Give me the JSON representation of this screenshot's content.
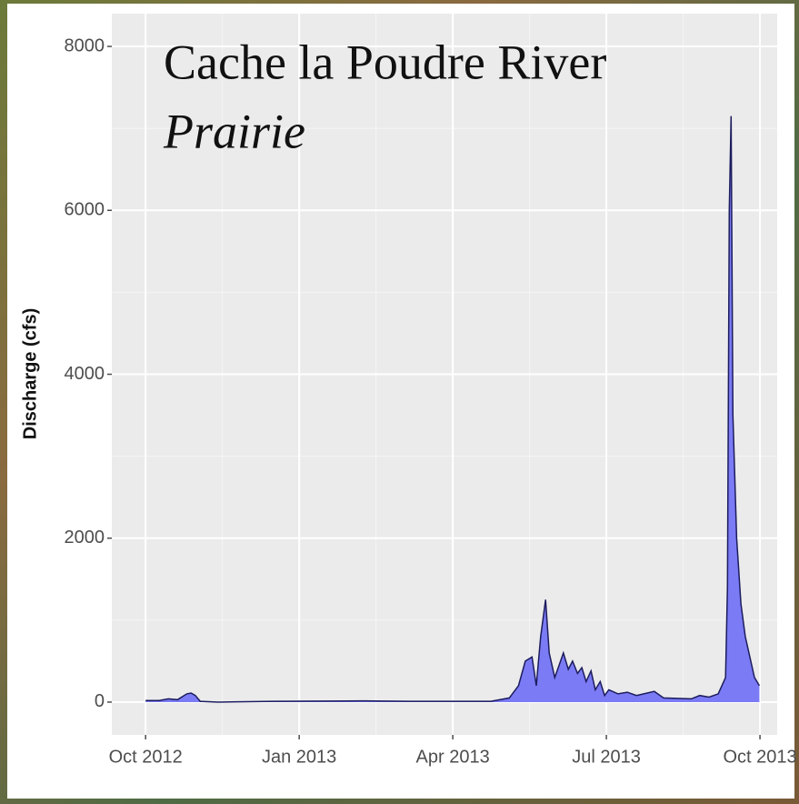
{
  "chart_data": {
    "type": "area",
    "title": "Cache la Poudre River",
    "subtitle": "Prairie",
    "y_label": "Discharge (cfs)",
    "x": [
      2012.75,
      2012.772,
      2012.787,
      2012.802,
      2012.817,
      2012.824,
      2012.831,
      2012.839,
      2012.868,
      2012.957,
      2013.105,
      2013.179,
      2013.312,
      2013.342,
      2013.357,
      2013.368,
      2013.379,
      2013.386,
      2013.393,
      2013.401,
      2013.407,
      2013.416,
      2013.423,
      2013.43,
      2013.438,
      2013.445,
      2013.453,
      2013.46,
      2013.467,
      2013.475,
      2013.482,
      2013.49,
      2013.497,
      2013.504,
      2013.519,
      2013.534,
      2013.549,
      2013.578,
      2013.593,
      2013.638,
      2013.652,
      2013.667,
      2013.682,
      2013.694,
      2013.697,
      2013.7,
      2013.703,
      2013.706,
      2013.712,
      2013.719,
      2013.726,
      2013.741,
      2013.749
    ],
    "values": [
      20,
      20,
      40,
      30,
      100,
      110,
      80,
      10,
      0,
      10,
      15,
      10,
      10,
      50,
      200,
      500,
      550,
      200,
      800,
      1250,
      600,
      300,
      450,
      600,
      400,
      500,
      350,
      420,
      250,
      380,
      150,
      250,
      80,
      150,
      100,
      120,
      80,
      130,
      50,
      40,
      80,
      60,
      100,
      300,
      1400,
      6000,
      7150,
      3500,
      2000,
      1200,
      800,
      300,
      200
    ],
    "color": "#7b7bf5",
    "line_color": "#1c1c5e",
    "xlim": [
      2012.695,
      2013.778
    ],
    "xticks": [
      {
        "value": 2012.75,
        "label": "Oct 2012"
      },
      {
        "value": 2013.0,
        "label": "Jan 2013"
      },
      {
        "value": 2013.25,
        "label": "Apr 2013"
      },
      {
        "value": 2013.5,
        "label": "Jul 2013"
      },
      {
        "value": 2013.75,
        "label": "Oct 2013"
      }
    ],
    "x_minor_ticks": [
      2012.875,
      2013.125,
      2013.375,
      2013.625
    ],
    "ylim": [
      -400,
      8400
    ],
    "yticks": [
      0,
      2000,
      4000,
      6000,
      8000
    ],
    "y_minor_ticks": [
      1000,
      3000,
      5000,
      7000
    ],
    "grid": true
  }
}
